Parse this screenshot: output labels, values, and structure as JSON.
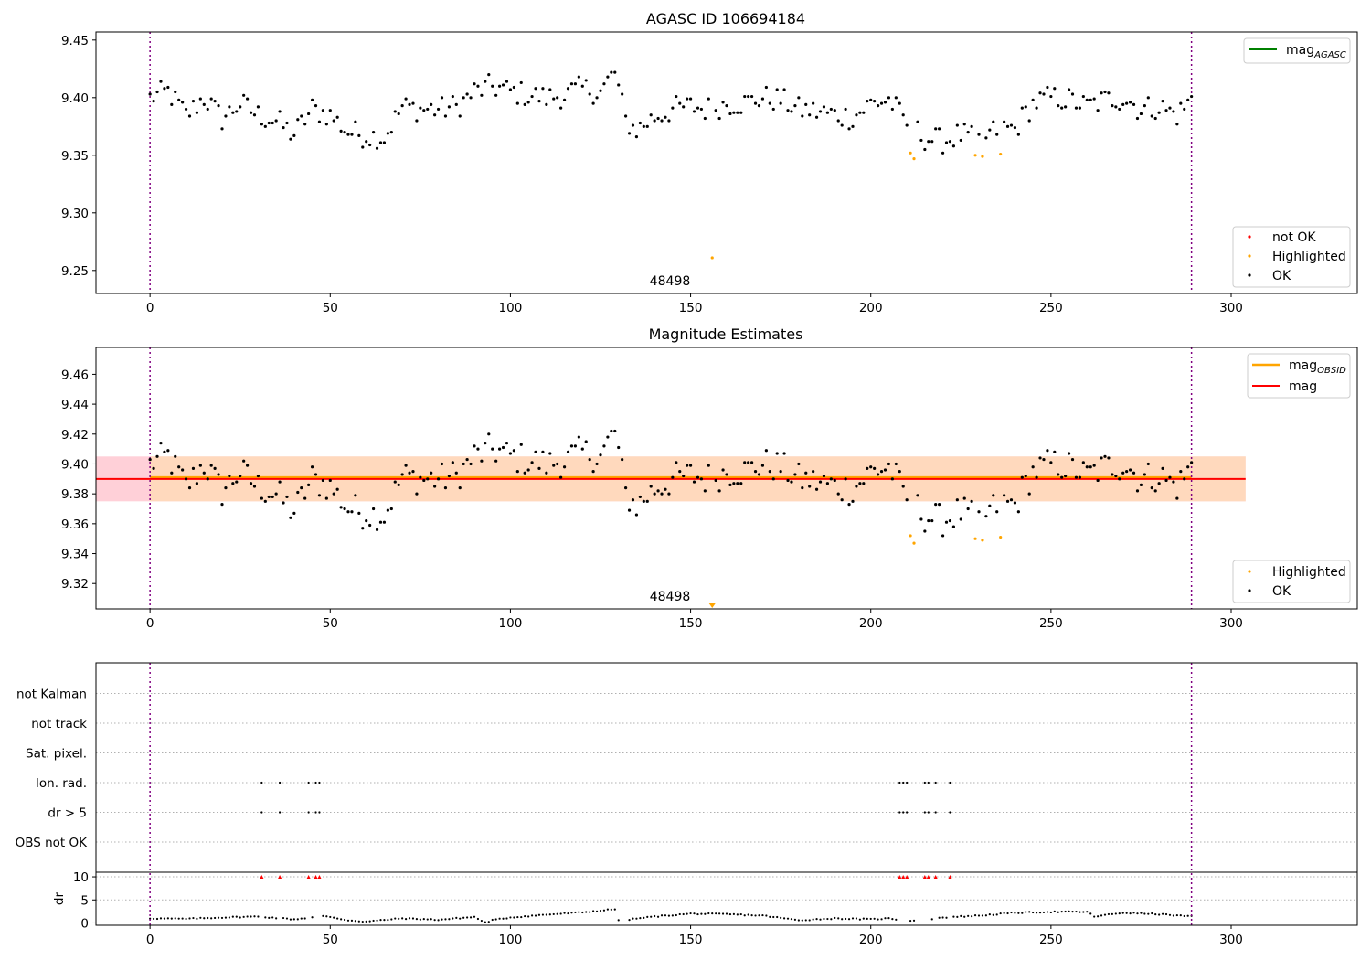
{
  "chart_data": [
    {
      "type": "scatter",
      "title": "AGASC ID 106694184",
      "xlim": [
        -15,
        335
      ],
      "ylim": [
        9.23,
        9.457
      ],
      "x_ticks": [
        0,
        50,
        100,
        150,
        200,
        250,
        300
      ],
      "y_ticks": [
        9.25,
        9.3,
        9.35,
        9.4,
        9.45
      ],
      "y_tick_labels": [
        "9.25",
        "9.30",
        "9.35",
        "9.40",
        "9.45"
      ],
      "vlines": [
        0,
        289
      ],
      "annotations": [
        {
          "text": "48498",
          "x": 144,
          "y": 9.236
        }
      ],
      "lines": [
        {
          "name": "mag_AGASC",
          "label_main": "mag",
          "label_sub": "AGASC",
          "value": 9.455,
          "color": "#008000"
        }
      ],
      "series": [
        {
          "name": "not OK",
          "color": "#ff0000",
          "x": [],
          "y": []
        },
        {
          "name": "Highlighted",
          "color": "#ffa500",
          "x": [
            156,
            211,
            212,
            229,
            231,
            236
          ],
          "y": [
            9.261,
            9.352,
            9.347,
            9.35,
            9.349,
            9.351
          ]
        },
        {
          "name": "OK",
          "color": "#000000",
          "x": [],
          "y": []
        }
      ],
      "ok_segments": [
        [
          0,
          9.4
        ],
        [
          5,
          9.405
        ],
        [
          10,
          9.385
        ],
        [
          15,
          9.4
        ],
        [
          20,
          9.382
        ],
        [
          25,
          9.395
        ],
        [
          30,
          9.385
        ],
        [
          35,
          9.38
        ],
        [
          40,
          9.368
        ],
        [
          45,
          9.39
        ],
        [
          50,
          9.385
        ],
        [
          55,
          9.37
        ],
        [
          60,
          9.367
        ],
        [
          65,
          9.366
        ],
        [
          70,
          9.392
        ],
        [
          75,
          9.39
        ],
        [
          80,
          9.39
        ],
        [
          85,
          9.392
        ],
        [
          90,
          9.405
        ],
        [
          95,
          9.41
        ],
        [
          100,
          9.405
        ],
        [
          105,
          9.402
        ],
        [
          110,
          9.4
        ],
        [
          115,
          9.402
        ],
        [
          120,
          9.408
        ],
        [
          125,
          9.405
        ],
        [
          129,
          9.422
        ],
        [
          132,
          9.38
        ],
        [
          135,
          9.372
        ],
        [
          140,
          9.383
        ],
        [
          145,
          9.39
        ],
        [
          150,
          9.392
        ],
        [
          155,
          9.39
        ],
        [
          160,
          9.395
        ],
        [
          165,
          9.395
        ],
        [
          170,
          9.4
        ],
        [
          175,
          9.398
        ],
        [
          180,
          9.39
        ],
        [
          185,
          9.388
        ],
        [
          190,
          9.385
        ],
        [
          195,
          9.383
        ],
        [
          200,
          9.395
        ],
        [
          205,
          9.398
        ],
        [
          210,
          9.378
        ],
        [
          215,
          9.365
        ],
        [
          220,
          9.362
        ],
        [
          225,
          9.368
        ],
        [
          230,
          9.362
        ],
        [
          235,
          9.372
        ],
        [
          240,
          9.373
        ],
        [
          245,
          9.395
        ],
        [
          250,
          9.4
        ],
        [
          255,
          9.398
        ],
        [
          260,
          9.392
        ],
        [
          265,
          9.398
        ],
        [
          270,
          9.4
        ],
        [
          275,
          9.39
        ],
        [
          280,
          9.392
        ],
        [
          285,
          9.385
        ],
        [
          289,
          9.398
        ]
      ],
      "legend": {
        "lines": "top-right",
        "points": "bottom-right"
      }
    },
    {
      "type": "scatter",
      "title": "Magnitude Estimates",
      "xlim": [
        -15,
        335
      ],
      "ylim": [
        9.303,
        9.478
      ],
      "x_ticks": [
        0,
        50,
        100,
        150,
        200,
        250,
        300
      ],
      "y_ticks": [
        9.32,
        9.34,
        9.36,
        9.38,
        9.4,
        9.42,
        9.44,
        9.46
      ],
      "y_tick_labels": [
        "9.32",
        "9.34",
        "9.36",
        "9.38",
        "9.40",
        "9.42",
        "9.44",
        "9.46"
      ],
      "vlines": [
        0,
        289
      ],
      "annotations": [
        {
          "text": "48498",
          "x": 144,
          "y": 9.306
        }
      ],
      "bands": [
        {
          "name": "mag band",
          "x": [
            -15,
            304
          ],
          "y": [
            9.375,
            9.405
          ],
          "color": "#ffc0cb"
        },
        {
          "name": "mag_OBSID band",
          "x": [
            0,
            304
          ],
          "y": [
            9.375,
            9.405
          ],
          "color": "#ffdcb4"
        }
      ],
      "lines": [
        {
          "name": "mag_OBSID",
          "label_main": "mag",
          "label_sub": "OBSID",
          "value": 9.391,
          "x": [
            0,
            289
          ],
          "color": "#ffa500"
        },
        {
          "name": "mag",
          "label_main": "mag",
          "label_sub": "",
          "value": 9.39,
          "x": [
            -15,
            304
          ],
          "color": "#ff0000"
        }
      ],
      "series": [
        {
          "name": "Highlighted",
          "color": "#ffa500",
          "x": [
            156,
            211,
            212,
            229,
            231,
            236
          ],
          "y": [
            9.304,
            9.352,
            9.347,
            9.35,
            9.349,
            9.351
          ],
          "clipped_marker_x": 156
        },
        {
          "name": "OK",
          "color": "#000000",
          "x": [],
          "y": []
        }
      ],
      "legend": {
        "lines": "top-right",
        "points": "bottom-right"
      }
    },
    {
      "type": "scatter",
      "title": "",
      "xlim": [
        -15,
        335
      ],
      "x_ticks": [
        0,
        50,
        100,
        150,
        200,
        250,
        300
      ],
      "vlines": [
        0,
        289
      ],
      "flag_rows": [
        "not Kalman",
        "not track",
        "Sat. pixel.",
        "Ion. rad.",
        "dr > 5",
        "OBS not OK"
      ],
      "flags": {
        "Ion. rad.": [
          31,
          36,
          44,
          46,
          47,
          208,
          209,
          210,
          215,
          216,
          218,
          222
        ],
        "dr > 5": [
          31,
          36,
          44,
          46,
          47,
          208,
          209,
          210,
          215,
          216,
          218,
          222
        ]
      },
      "dr_panel": {
        "ylabel": "dr",
        "ylim": [
          -0.5,
          11
        ],
        "y_ticks": [
          0,
          5,
          10
        ],
        "clip_value": 10,
        "clipped_x": [
          31,
          36,
          44,
          46,
          47,
          208,
          209,
          210,
          215,
          216,
          218,
          222
        ],
        "x": [
          0,
          10,
          20,
          30,
          40,
          48,
          55,
          60,
          70,
          80,
          90,
          93,
          95,
          100,
          110,
          120,
          129,
          130,
          140,
          150,
          160,
          170,
          180,
          190,
          200,
          205,
          210,
          215,
          220,
          230,
          240,
          250,
          260,
          262,
          270,
          280,
          289
        ],
        "y": [
          1.0,
          0.9,
          1.2,
          1.4,
          0.8,
          1.5,
          0.6,
          0.3,
          1.0,
          0.7,
          1.3,
          0.1,
          0.6,
          1.2,
          1.8,
          2.3,
          3.0,
          0.5,
          1.4,
          2.0,
          1.9,
          1.6,
          0.6,
          1.0,
          0.8,
          1.0,
          0.5,
          0.7,
          1.2,
          1.6,
          2.2,
          2.4,
          2.4,
          1.4,
          2.2,
          1.9,
          1.4
        ]
      }
    }
  ]
}
